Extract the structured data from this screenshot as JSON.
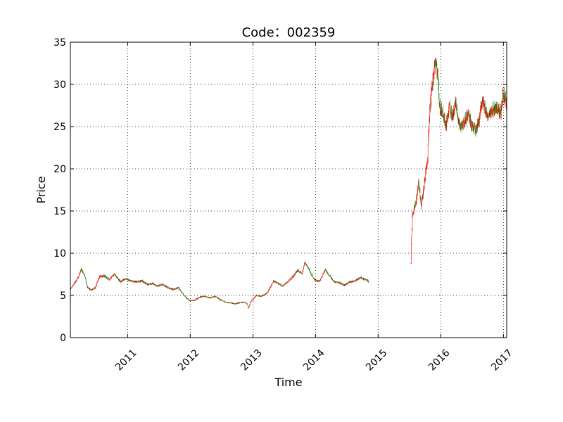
{
  "chart_data": {
    "type": "candlestick",
    "title": "Code：002359",
    "xlabel": "Time",
    "ylabel": "Price",
    "ylim": [
      0,
      35
    ],
    "xlim": [
      "2010-02-01",
      "2017-01-20"
    ],
    "grid": true,
    "y_ticks": [
      "0",
      "5",
      "10",
      "15",
      "20",
      "25",
      "30",
      "35"
    ],
    "x_ticks": [
      {
        "date": "2011-01-01",
        "label": "2011"
      },
      {
        "date": "2012-01-01",
        "label": "2012"
      },
      {
        "date": "2013-01-01",
        "label": "2013"
      },
      {
        "date": "2014-01-01",
        "label": "2014"
      },
      {
        "date": "2015-01-01",
        "label": "2015"
      },
      {
        "date": "2016-01-01",
        "label": "2016"
      },
      {
        "date": "2017-01-01",
        "label": "2017"
      }
    ],
    "colors": {
      "up": "#ff0000",
      "down": "#008000"
    },
    "price_path": [
      [
        "2010-02-01",
        5.7
      ],
      [
        "2010-02-20",
        6.3
      ],
      [
        "2010-03-15",
        7.0
      ],
      [
        "2010-04-05",
        8.1
      ],
      [
        "2010-04-25",
        7.4
      ],
      [
        "2010-05-10",
        6.0
      ],
      [
        "2010-06-01",
        5.6
      ],
      [
        "2010-06-25",
        5.9
      ],
      [
        "2010-07-20",
        7.2
      ],
      [
        "2010-08-20",
        7.3
      ],
      [
        "2010-09-15",
        6.9
      ],
      [
        "2010-10-15",
        7.5
      ],
      [
        "2010-11-20",
        6.6
      ],
      [
        "2010-12-20",
        7.0
      ],
      [
        "2011-01-20",
        6.7
      ],
      [
        "2011-02-25",
        6.6
      ],
      [
        "2011-03-25",
        6.7
      ],
      [
        "2011-04-25",
        6.3
      ],
      [
        "2011-05-25",
        6.4
      ],
      [
        "2011-06-25",
        6.1
      ],
      [
        "2011-07-25",
        6.3
      ],
      [
        "2011-08-25",
        5.9
      ],
      [
        "2011-09-25",
        5.7
      ],
      [
        "2011-10-25",
        5.9
      ],
      [
        "2011-11-25",
        5.0
      ],
      [
        "2011-12-25",
        4.4
      ],
      [
        "2012-01-25",
        4.4
      ],
      [
        "2012-02-25",
        4.8
      ],
      [
        "2012-03-25",
        4.9
      ],
      [
        "2012-04-25",
        4.7
      ],
      [
        "2012-05-25",
        4.9
      ],
      [
        "2012-06-25",
        4.5
      ],
      [
        "2012-07-25",
        4.2
      ],
      [
        "2012-08-25",
        4.1
      ],
      [
        "2012-09-25",
        4.0
      ],
      [
        "2012-10-25",
        4.2
      ],
      [
        "2012-11-25",
        4.1
      ],
      [
        "2012-12-05",
        3.5
      ],
      [
        "2012-12-20",
        4.3
      ],
      [
        "2013-01-20",
        5.0
      ],
      [
        "2013-02-20",
        4.9
      ],
      [
        "2013-03-10",
        5.1
      ],
      [
        "2013-03-25",
        5.3
      ],
      [
        "2013-05-01",
        6.7
      ],
      [
        "2013-05-20",
        6.5
      ],
      [
        "2013-06-20",
        6.1
      ],
      [
        "2013-07-20",
        6.6
      ],
      [
        "2013-08-20",
        7.2
      ],
      [
        "2013-09-20",
        8.0
      ],
      [
        "2013-10-15",
        7.6
      ],
      [
        "2013-10-30",
        8.9
      ],
      [
        "2013-11-20",
        8.2
      ],
      [
        "2013-12-20",
        7.0
      ],
      [
        "2014-01-20",
        6.6
      ],
      [
        "2014-02-10",
        7.3
      ],
      [
        "2014-02-25",
        8.1
      ],
      [
        "2014-03-20",
        7.4
      ],
      [
        "2014-04-20",
        6.6
      ],
      [
        "2014-05-20",
        6.5
      ],
      [
        "2014-06-20",
        6.2
      ],
      [
        "2014-07-20",
        6.6
      ],
      [
        "2014-08-20",
        6.7
      ],
      [
        "2014-09-20",
        7.1
      ],
      [
        "2014-10-20",
        6.9
      ],
      [
        "2014-11-10",
        6.6
      ],
      [
        "2015-07-10",
        8.8
      ],
      [
        "2015-07-20",
        14.5
      ],
      [
        "2015-08-10",
        16.0
      ],
      [
        "2015-08-25",
        18.5
      ],
      [
        "2015-09-10",
        15.6
      ],
      [
        "2015-09-25",
        17.8
      ],
      [
        "2015-10-15",
        21.0
      ],
      [
        "2015-10-30",
        27.0
      ],
      [
        "2015-11-15",
        30.5
      ],
      [
        "2015-12-01",
        33.0
      ],
      [
        "2015-12-15",
        31.0
      ],
      [
        "2015-12-28",
        27.0
      ],
      [
        "2016-01-15",
        26.5
      ],
      [
        "2016-02-01",
        25.0
      ],
      [
        "2016-02-20",
        27.5
      ],
      [
        "2016-03-10",
        26.0
      ],
      [
        "2016-03-28",
        28.0
      ],
      [
        "2016-04-15",
        25.5
      ],
      [
        "2016-05-01",
        25.0
      ],
      [
        "2016-05-20",
        25.6
      ],
      [
        "2016-06-10",
        26.5
      ],
      [
        "2016-06-28",
        25.0
      ],
      [
        "2016-07-20",
        24.6
      ],
      [
        "2016-08-10",
        25.5
      ],
      [
        "2016-08-30",
        28.3
      ],
      [
        "2016-09-20",
        26.8
      ],
      [
        "2016-10-10",
        26.0
      ],
      [
        "2016-10-30",
        27.0
      ],
      [
        "2016-11-20",
        27.2
      ],
      [
        "2016-12-15",
        26.8
      ],
      [
        "2017-01-01",
        29.0
      ],
      [
        "2017-01-20",
        27.5
      ]
    ]
  }
}
